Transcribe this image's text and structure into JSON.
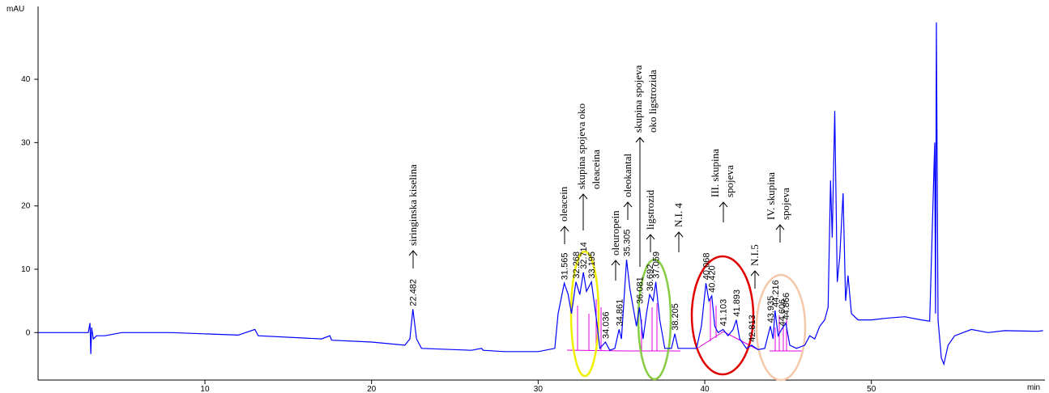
{
  "chart_data": {
    "type": "line",
    "y_label": "mAU",
    "x_label": "min",
    "xlim": [
      0,
      60.3
    ],
    "ylim": [
      -7.5,
      51.5
    ],
    "xticks": [
      10,
      20,
      30,
      40,
      50
    ],
    "yticks": [
      0,
      10,
      20,
      30,
      40
    ],
    "x": [
      0,
      3.0,
      3.1,
      3.15,
      3.2,
      3.3,
      3.5,
      4,
      5,
      8,
      12,
      13,
      13.2,
      17,
      17.5,
      17.6,
      20,
      22,
      22.3,
      22.48,
      22.7,
      23,
      26,
      26.6,
      26.7,
      28,
      30,
      31,
      31.2,
      31.565,
      31.8,
      32.0,
      32.268,
      32.5,
      32.714,
      32.9,
      33.195,
      33.5,
      33.7,
      34.036,
      34.3,
      34.6,
      34.861,
      35.0,
      35.305,
      35.5,
      35.7,
      35.9,
      36.081,
      36.3,
      36.5,
      36.692,
      36.9,
      37.059,
      37.3,
      37.6,
      38.0,
      38.205,
      38.4,
      39.5,
      39.8,
      40.068,
      40.25,
      40.42,
      40.6,
      40.8,
      41.103,
      41.4,
      41.7,
      41.893,
      42.1,
      42.5,
      42.813,
      43.2,
      43.6,
      43.935,
      44.1,
      44.216,
      44.4,
      44.606,
      44.866,
      45.1,
      45.5,
      46,
      46.3,
      46.6,
      46.9,
      47.2,
      47.4,
      47.55,
      47.65,
      47.8,
      47.95,
      48.1,
      48.3,
      48.45,
      48.6,
      48.8,
      49.2,
      50,
      51,
      52,
      53,
      53.5,
      53.8,
      53.85,
      53.9,
      53.95,
      54.0,
      54.2,
      54.35,
      54.6,
      55,
      56,
      57,
      58,
      60,
      60.3
    ],
    "series": [
      {
        "color": "#0000ff",
        "values": [
          0,
          0,
          1.5,
          -3.4,
          0.8,
          -1,
          -0.5,
          -0.5,
          0,
          0,
          -0.4,
          0.5,
          -0.5,
          -1,
          -0.5,
          -1.2,
          -1.5,
          -2,
          -1,
          3.7,
          -1,
          -2.5,
          -2.8,
          -2.5,
          -2.8,
          -3,
          -3,
          -2.5,
          3,
          7.8,
          6,
          3,
          8,
          6,
          9.5,
          6.5,
          8,
          2,
          -2.5,
          -1.5,
          -2.8,
          -2.5,
          0.5,
          -1,
          11.5,
          7,
          4,
          1,
          4,
          -1,
          3,
          6,
          5,
          8,
          2,
          -2.5,
          -2.5,
          -0.2,
          -2.5,
          -2.5,
          1,
          7.8,
          5,
          5.8,
          1,
          0,
          0.5,
          -0.5,
          0.5,
          2,
          -1,
          -2.5,
          -2,
          -2.7,
          -2.5,
          1,
          -1,
          3.5,
          -0.5,
          0.5,
          1.5,
          -2,
          -2.5,
          -2,
          -0.5,
          -1,
          1,
          2,
          4,
          24,
          15,
          35,
          8,
          12,
          22,
          5,
          9,
          3,
          2,
          2,
          2.3,
          2.5,
          2,
          1.8,
          30,
          3,
          49,
          25,
          2,
          -4,
          -5,
          -2,
          -0.5,
          0.5,
          0,
          0.3,
          0.2,
          0.3
        ]
      }
    ],
    "peak_labels": [
      22.482,
      31.565,
      32.268,
      32.714,
      33.195,
      34.036,
      34.861,
      35.305,
      36.081,
      36.692,
      37.059,
      38.205,
      {
        "value": 40.068,
        "label": "40.068"
      },
      {
        "value": 40.42,
        "label": "40.420"
      },
      41.103,
      41.893,
      42.813,
      43.935,
      44.216,
      44.606,
      44.866
    ],
    "annotations": [
      [
        "siringinska kiselina"
      ],
      [
        "oleacein"
      ],
      [
        "skupina spojeva oko",
        "oleaceina"
      ],
      [
        "oleuropein"
      ],
      [
        "oleokantal"
      ],
      [
        "skupina spojeva",
        "oko ligstrozida"
      ],
      [
        "ligstrozid"
      ],
      [
        "N.I. 4"
      ],
      [
        "III. skupina",
        "spojeva"
      ],
      [
        "N.I.5"
      ],
      [
        "IV. skupina",
        "spojeva"
      ]
    ]
  }
}
